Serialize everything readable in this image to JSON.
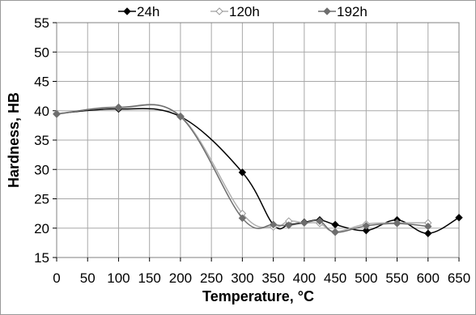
{
  "chart_data": {
    "type": "line",
    "title": "",
    "xlabel": "Temperature, °C",
    "ylabel": "Hardness, HB",
    "xlim": [
      0,
      650
    ],
    "ylim": [
      15,
      55
    ],
    "x_ticks": [
      0,
      50,
      100,
      150,
      200,
      250,
      300,
      350,
      400,
      450,
      500,
      550,
      600,
      650
    ],
    "y_ticks": [
      15,
      20,
      25,
      30,
      35,
      40,
      45,
      50,
      55
    ],
    "grid": true,
    "legend_position": "top",
    "series": [
      {
        "name": "24h",
        "marker": "filled-diamond",
        "color": "#000000",
        "x": [
          0,
          100,
          200,
          300,
          350,
          375,
          400,
          425,
          450,
          500,
          550,
          600,
          650
        ],
        "y": [
          39.5,
          40.3,
          39.0,
          29.5,
          20.6,
          20.6,
          21.0,
          21.4,
          20.6,
          19.6,
          21.4,
          19.1,
          21.8
        ]
      },
      {
        "name": "120h",
        "marker": "open-diamond",
        "color": "#b0b0b0",
        "x": [
          0,
          100,
          200,
          300,
          350,
          375,
          400,
          425,
          450,
          500,
          550,
          600
        ],
        "y": [
          39.5,
          40.5,
          39.1,
          22.5,
          20.2,
          21.2,
          20.9,
          20.8,
          19.4,
          20.7,
          20.9,
          20.9
        ]
      },
      {
        "name": "192h",
        "marker": "filled-diamond",
        "color": "#6e6e6e",
        "x": [
          0,
          100,
          200,
          300,
          350,
          375,
          400,
          425,
          450,
          500,
          550,
          600
        ],
        "y": [
          39.4,
          40.6,
          39.0,
          21.7,
          20.6,
          20.5,
          20.9,
          21.2,
          19.3,
          20.4,
          20.8,
          20.3
        ]
      }
    ]
  }
}
